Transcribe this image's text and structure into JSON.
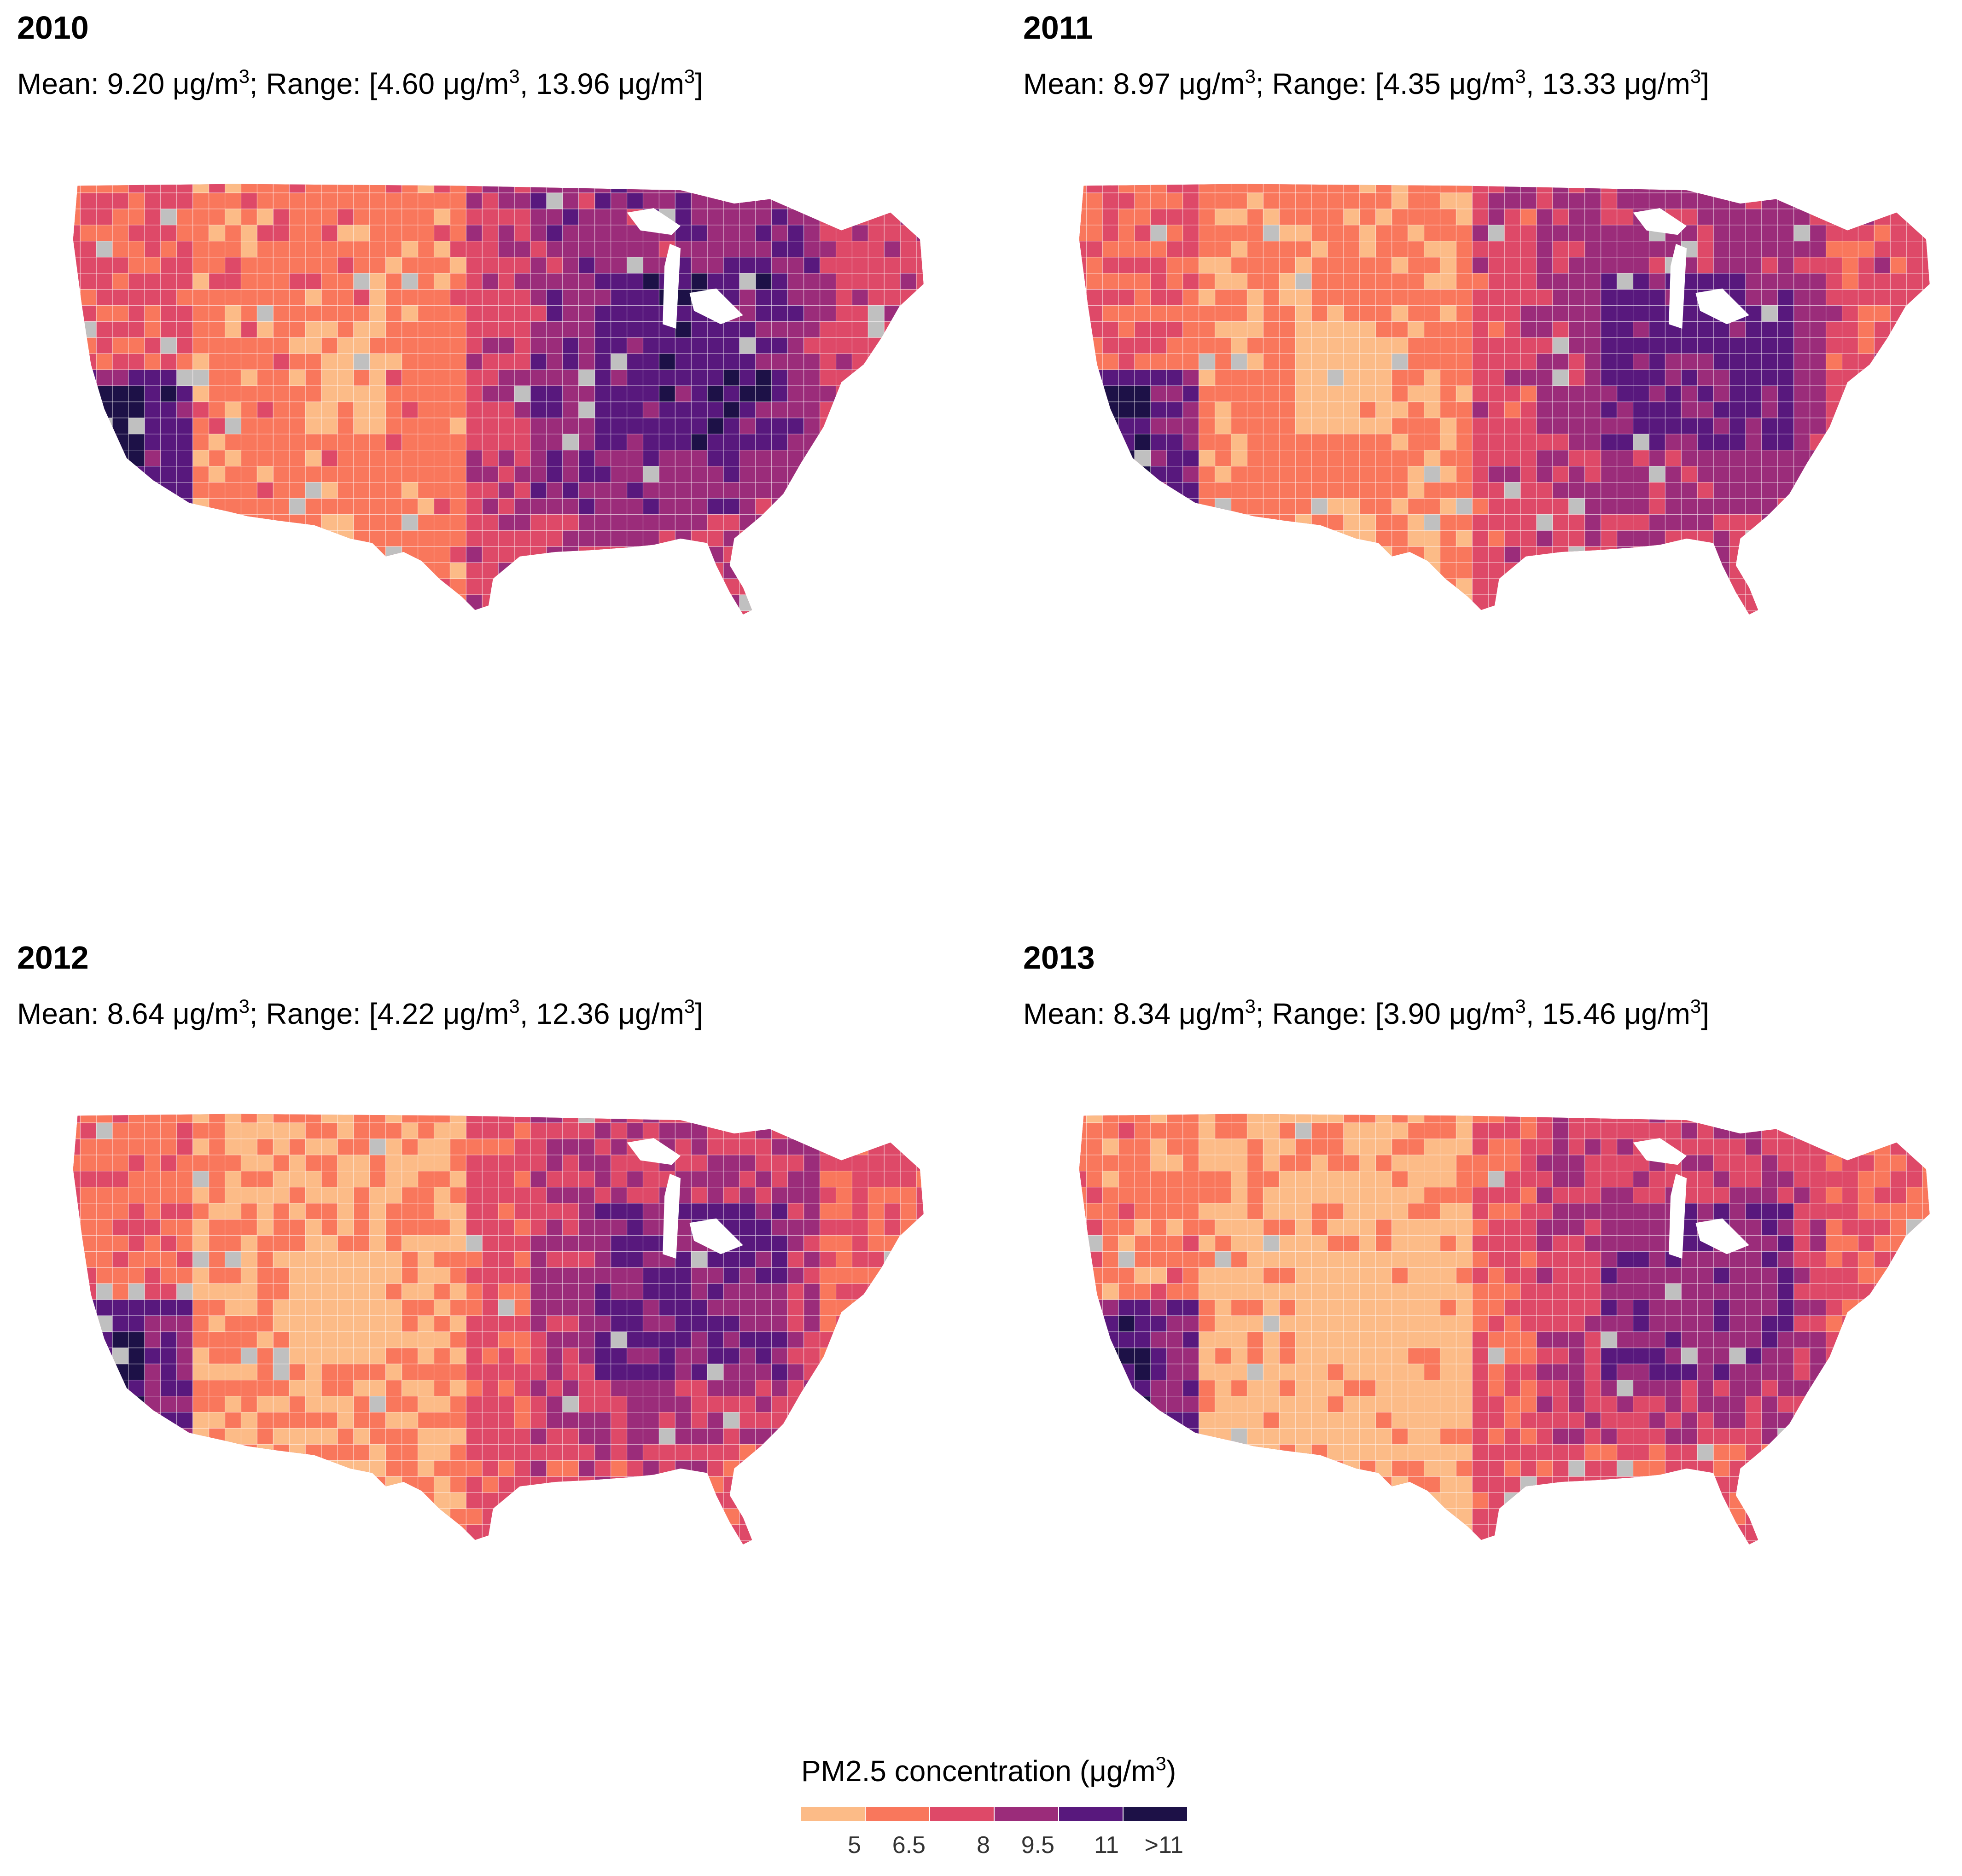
{
  "panels": [
    {
      "year": "2010",
      "mean": "9.20",
      "low": "4.60",
      "high": "13.96"
    },
    {
      "year": "2011",
      "mean": "8.97",
      "low": "4.35",
      "high": "13.33"
    },
    {
      "year": "2012",
      "mean": "8.64",
      "low": "4.22",
      "high": "12.36"
    },
    {
      "year": "2013",
      "mean": "8.34",
      "low": "3.90",
      "high": "15.46"
    }
  ],
  "labels": {
    "mean": "Mean: ",
    "range": "; Range: [",
    "unit": "μg/m",
    "sup": "3",
    "sep": ", ",
    "close": "]"
  },
  "legend": {
    "title": "PM2.5 concentration (μg/m",
    "title_sup": "3",
    "title_close": ")",
    "bins": [
      "5",
      "6.5",
      "8",
      "9.5",
      "11",
      ">11"
    ],
    "colors": [
      "#fcbb87",
      "#f9775c",
      "#de4968",
      "#9b2c7a",
      "#58187d",
      "#1d1147"
    ],
    "missing_color": "#c0c0c0"
  }
}
